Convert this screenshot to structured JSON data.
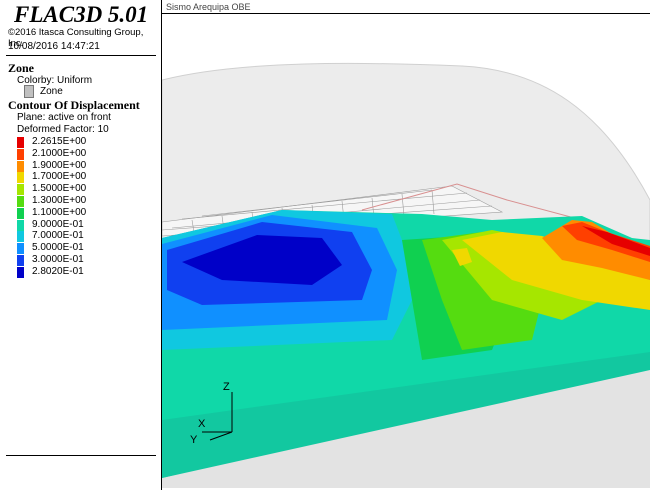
{
  "app": {
    "title": "FLAC3D 5.01",
    "copyright": "©2016 Itasca Consulting Group, Inc.",
    "datetime": "10/08/2016 14:47:21"
  },
  "view": {
    "title": "Sismo Arequipa OBE"
  },
  "legend": {
    "zone_heading": "Zone",
    "colorby": "Colorby: Uniform",
    "zone_swatch_label": "Zone",
    "contour_heading": "Contour Of Displacement",
    "plane": "Plane: active on front",
    "deformed_factor": "Deformed Factor: 10",
    "items": [
      {
        "label": "2.2615E+00",
        "color": "#e60000"
      },
      {
        "label": "2.1000E+00",
        "color": "#ff4000"
      },
      {
        "label": "1.9000E+00",
        "color": "#ff8c00"
      },
      {
        "label": "1.7000E+00",
        "color": "#f0d800"
      },
      {
        "label": "1.5000E+00",
        "color": "#a6e600"
      },
      {
        "label": "1.3000E+00",
        "color": "#55dc10"
      },
      {
        "label": "1.1000E+00",
        "color": "#10d050"
      },
      {
        "label": "9.0000E-01",
        "color": "#10d8a8"
      },
      {
        "label": "7.0000E-01",
        "color": "#10c8e0"
      },
      {
        "label": "5.0000E-01",
        "color": "#1090ff"
      },
      {
        "label": "3.0000E-01",
        "color": "#1040f0"
      },
      {
        "label": "2.8020E-01",
        "color": "#0000c8"
      }
    ]
  },
  "axes": {
    "z": "Z",
    "x": "X",
    "y": "Y"
  }
}
